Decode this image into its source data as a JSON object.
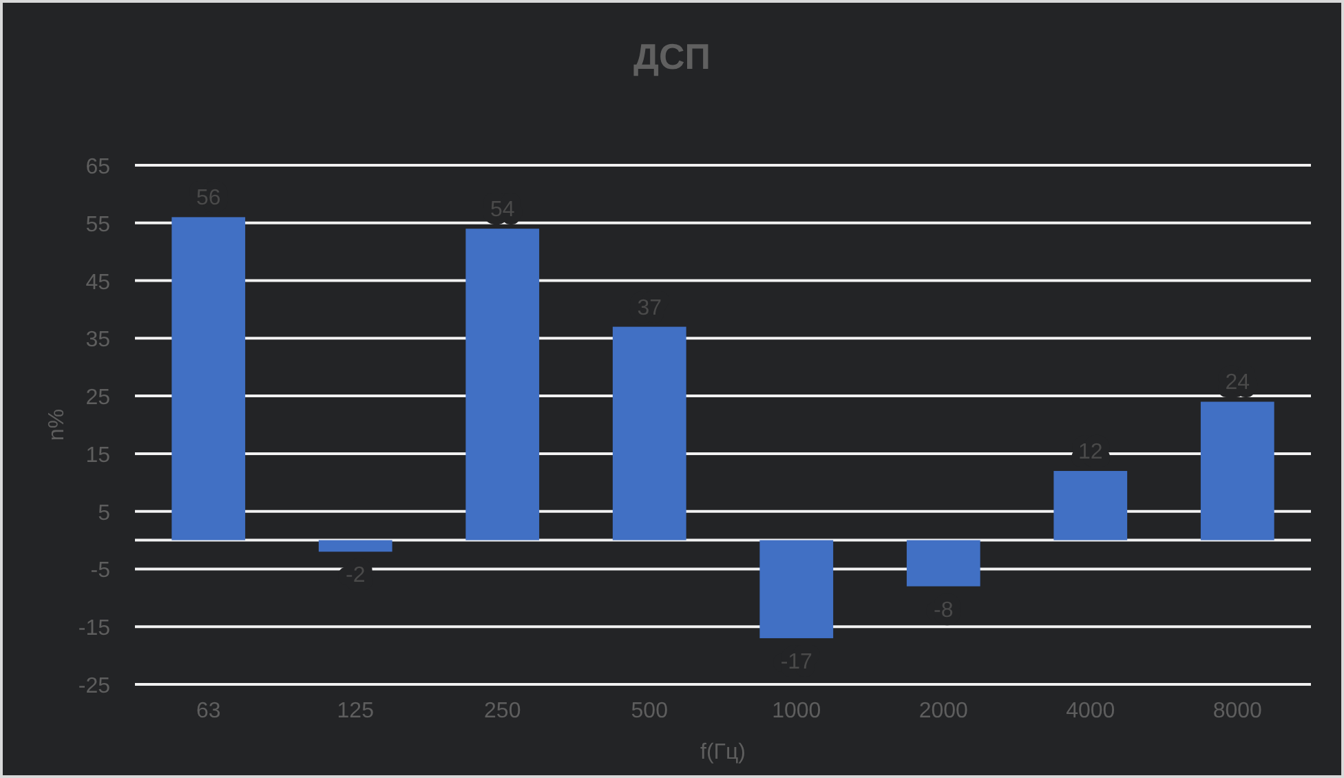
{
  "chart_data": {
    "type": "bar",
    "title": "ДСП",
    "xlabel": "f(Гц)",
    "ylabel": "n%",
    "categories": [
      "63",
      "125",
      "250",
      "500",
      "1000",
      "2000",
      "4000",
      "8000"
    ],
    "values": [
      56,
      -2,
      54,
      37,
      -17,
      -8,
      12,
      24
    ],
    "color": "#4170c4",
    "ylim": [
      -25,
      65
    ],
    "yticks": [
      -25,
      -15,
      -5,
      5,
      15,
      25,
      35,
      45,
      55,
      65
    ],
    "grid": "y",
    "data_labels": true
  }
}
